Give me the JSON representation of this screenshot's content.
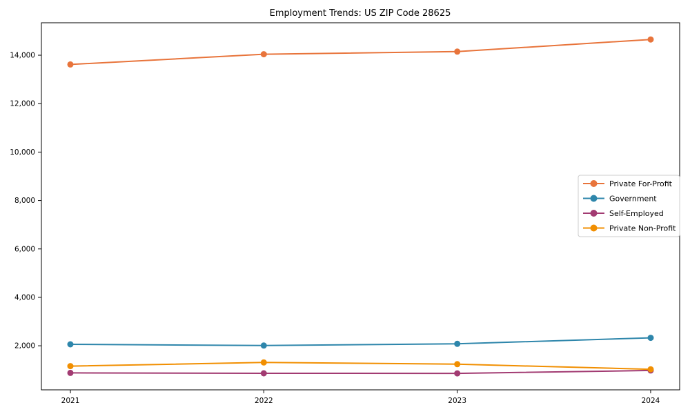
{
  "chart_data": {
    "type": "line",
    "title": "Employment Trends: US ZIP Code 28625",
    "xlabel": "",
    "ylabel": "",
    "x": [
      2021,
      2022,
      2023,
      2024
    ],
    "x_tick_labels": [
      "2021",
      "2022",
      "2023",
      "2024"
    ],
    "y_ticks": [
      2000,
      4000,
      6000,
      8000,
      10000,
      12000,
      14000
    ],
    "y_tick_labels": [
      "2,000",
      "4,000",
      "6,000",
      "8,000",
      "10,000",
      "12,000",
      "14,000"
    ],
    "xlim": [
      2020.85,
      2024.15
    ],
    "ylim": [
      180,
      15340
    ],
    "grid": false,
    "legend_position": "center-right",
    "series": [
      {
        "name": "Private For-Profit",
        "color": "#E8743B",
        "values": [
          13620,
          14040,
          14150,
          14650
        ]
      },
      {
        "name": "Government",
        "color": "#2E86AB",
        "values": [
          2060,
          2010,
          2080,
          2330
        ]
      },
      {
        "name": "Self-Employed",
        "color": "#A23B72",
        "values": [
          880,
          865,
          860,
          980
        ]
      },
      {
        "name": "Private Non-Profit",
        "color": "#F18F01",
        "values": [
          1160,
          1310,
          1240,
          1030
        ]
      }
    ]
  }
}
